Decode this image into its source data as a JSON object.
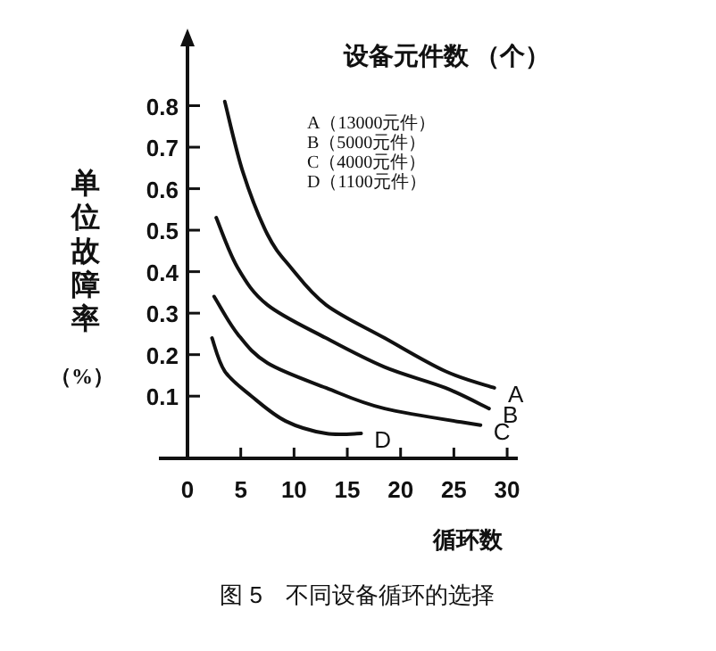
{
  "chart_data": {
    "type": "line",
    "title": "设备元件数 （个）",
    "xlabel": "循环数",
    "ylabel": "单位故障率（%）",
    "annotations": [
      "A（13000元件）",
      "B（5000元件）",
      "C（4000元件）",
      "D（1100元件）",
      "图 5　不同设备循环的选择"
    ],
    "xlim": [
      0,
      31
    ],
    "ylim": [
      -0.05,
      0.9
    ],
    "xticks": [
      0,
      5,
      10,
      15,
      20,
      25,
      30
    ],
    "yticks": [
      0.1,
      0.2,
      0.3,
      0.4,
      0.5,
      0.6,
      0.7,
      0.8
    ],
    "grid": false,
    "marker": "none",
    "line_style": "solid",
    "series": [
      {
        "name": "A",
        "color": "#111111",
        "x": [
          3.5,
          5.2,
          7.5,
          9.7,
          13,
          18.5,
          24.2,
          28.8
        ],
        "values": [
          0.81,
          0.64,
          0.49,
          0.41,
          0.32,
          0.24,
          0.16,
          0.12
        ]
      },
      {
        "name": "B",
        "color": "#111111",
        "x": [
          2.7,
          4.7,
          7.5,
          13,
          18.5,
          24.2,
          28.3
        ],
        "values": [
          0.53,
          0.41,
          0.32,
          0.24,
          0.17,
          0.12,
          0.07
        ]
      },
      {
        "name": "C",
        "color": "#111111",
        "x": [
          2.5,
          4.7,
          7.5,
          13,
          18.5,
          27.5
        ],
        "values": [
          0.34,
          0.25,
          0.18,
          0.12,
          0.07,
          0.03
        ]
      },
      {
        "name": "D",
        "color": "#111111",
        "x": [
          2.3,
          3.5,
          6,
          9.2,
          13,
          16.3
        ],
        "values": [
          0.24,
          0.16,
          0.1,
          0.04,
          0.01,
          0.01
        ]
      }
    ]
  }
}
